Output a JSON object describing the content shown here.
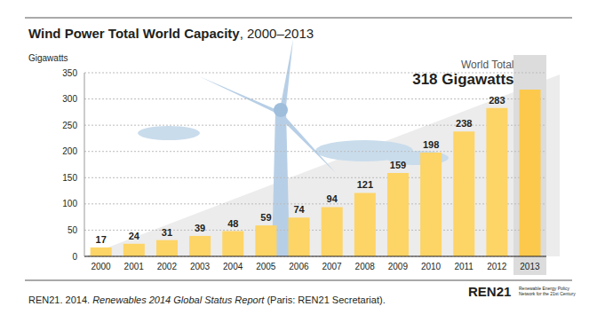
{
  "chart_data": {
    "type": "bar",
    "title": "Wind Power Total World Capacity",
    "subtitle": ", 2000–2013",
    "y_label": "Gigawatts",
    "categories": [
      "2000",
      "2001",
      "2002",
      "2003",
      "2004",
      "2005",
      "2006",
      "2007",
      "2008",
      "2009",
      "2010",
      "2011",
      "2012",
      "2013"
    ],
    "values": [
      17,
      24,
      31,
      39,
      48,
      59,
      74,
      94,
      121,
      159,
      198,
      238,
      283,
      318
    ],
    "value_labels": [
      "17",
      "24",
      "31",
      "39",
      "48",
      "59",
      "74",
      "94",
      "121",
      "159",
      "198",
      "238",
      "283",
      "318 Gigawatts"
    ],
    "annotation": "World Total",
    "colors": [
      "#fdd466",
      "#fdd466",
      "#fdd466",
      "#fdd466",
      "#fdd466",
      "#fdd466",
      "#fdd466",
      "#fdd466",
      "#fdd466",
      "#fdd466",
      "#fdd466",
      "#fdd466",
      "#fdd466",
      "#fcc94c"
    ],
    "ylim": [
      0,
      350
    ],
    "yticks": [
      0,
      50,
      100,
      150,
      200,
      250,
      300,
      350
    ],
    "grid": true,
    "data_labels": true,
    "source": [
      "REN21. 2014. ",
      "Renewables 2014 Global Status Report",
      " (Paris: REN21 Secretariat)."
    ],
    "logo": "REN21",
    "logo_text": "Renewable Energy Policy Network for the 21st Century"
  }
}
